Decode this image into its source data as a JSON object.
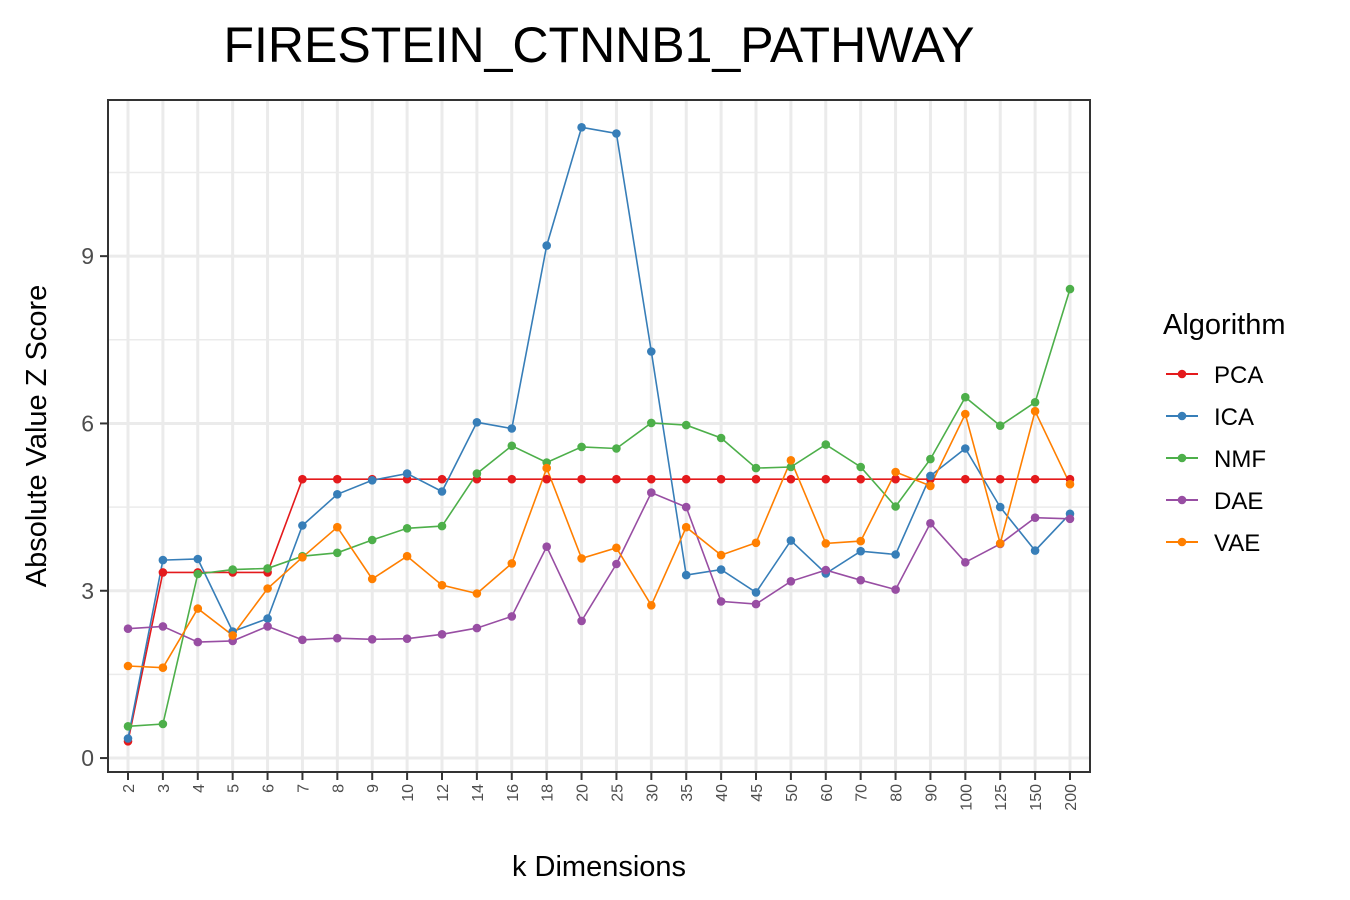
{
  "chart_data": {
    "type": "line",
    "title": "FIRESTEIN_CTNNB1_PATHWAY",
    "xlabel": "k Dimensions",
    "ylabel": "Absolute Value Z Score",
    "categories": [
      "2",
      "3",
      "4",
      "5",
      "6",
      "7",
      "8",
      "9",
      "10",
      "12",
      "14",
      "16",
      "18",
      "20",
      "25",
      "30",
      "35",
      "40",
      "45",
      "50",
      "60",
      "70",
      "80",
      "90",
      "100",
      "125",
      "150",
      "200"
    ],
    "y_ticks": [
      "0",
      "3",
      "6",
      "9"
    ],
    "ylim": [
      -0.25,
      11.8
    ],
    "grid": true,
    "legend": {
      "title": "Algorithm",
      "position": "right"
    },
    "series": [
      {
        "name": "PCA",
        "color": "#e41a1c",
        "values": [
          0.3,
          3.33,
          3.33,
          3.33,
          3.33,
          5.0,
          5.0,
          5.0,
          5.0,
          5.0,
          5.0,
          5.0,
          5.0,
          5.0,
          5.0,
          5.0,
          5.0,
          5.0,
          5.0,
          5.0,
          5.0,
          5.0,
          5.0,
          5.0,
          5.0,
          5.0,
          5.0,
          5.0
        ]
      },
      {
        "name": "ICA",
        "color": "#377eb8",
        "values": [
          0.35,
          3.55,
          3.57,
          2.27,
          2.5,
          4.17,
          4.73,
          4.98,
          5.1,
          4.78,
          6.02,
          5.91,
          9.19,
          11.31,
          11.2,
          7.29,
          3.28,
          3.38,
          2.97,
          3.9,
          3.31,
          3.71,
          3.65,
          5.06,
          5.55,
          4.5,
          3.72,
          4.38
        ]
      },
      {
        "name": "NMF",
        "color": "#4daf4a",
        "values": [
          0.57,
          0.61,
          3.3,
          3.38,
          3.4,
          3.62,
          3.68,
          3.91,
          4.12,
          4.16,
          5.1,
          5.6,
          5.3,
          5.58,
          5.55,
          6.01,
          5.97,
          5.74,
          5.2,
          5.22,
          5.62,
          5.22,
          4.51,
          5.36,
          6.47,
          5.96,
          6.38,
          8.41
        ]
      },
      {
        "name": "DAE",
        "color": "#984ea3",
        "values": [
          2.32,
          2.36,
          2.08,
          2.1,
          2.36,
          2.12,
          2.15,
          2.13,
          2.14,
          2.22,
          2.33,
          2.54,
          3.79,
          2.46,
          3.48,
          4.76,
          4.5,
          2.81,
          2.76,
          3.17,
          3.37,
          3.19,
          3.02,
          4.21,
          3.51,
          3.84,
          4.31,
          4.29
        ]
      },
      {
        "name": "VAE",
        "color": "#ff7f00",
        "values": [
          1.65,
          1.62,
          2.68,
          2.2,
          3.04,
          3.6,
          4.14,
          3.21,
          3.62,
          3.1,
          2.95,
          3.49,
          5.2,
          3.58,
          3.77,
          2.74,
          4.14,
          3.64,
          3.86,
          5.34,
          3.85,
          3.89,
          5.13,
          4.88,
          6.17,
          3.85,
          6.22,
          4.91
        ]
      }
    ]
  }
}
